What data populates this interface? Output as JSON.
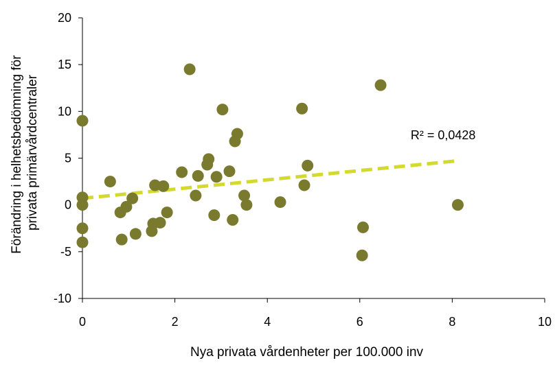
{
  "chart_data": {
    "type": "scatter",
    "title": "",
    "xlabel": "Nya privata vårdenheter per 100.000 inv",
    "ylabel_lines": [
      "Förändring i helhetsbedömning för",
      "privata primärvårdcentraler"
    ],
    "xlim": [
      0,
      10
    ],
    "ylim": [
      -10,
      20
    ],
    "x_ticks": [
      0,
      2,
      4,
      6,
      8,
      10
    ],
    "y_ticks": [
      -10,
      -5,
      0,
      5,
      10,
      15,
      20
    ],
    "x_tick_labels": [
      "0",
      "2",
      "4",
      "6",
      "8",
      "10"
    ],
    "y_tick_labels": [
      "-10",
      "-5",
      "0",
      "5",
      "10",
      "15",
      "20"
    ],
    "grid": false,
    "legend": "none",
    "series": [
      {
        "x": [
          0,
          0,
          0,
          0,
          0,
          0.6,
          0.82,
          0.85,
          0.95,
          1.08,
          1.15,
          1.5,
          1.53,
          1.57,
          1.68,
          1.75,
          1.83,
          2.15,
          2.32,
          2.45,
          2.5,
          2.7,
          2.73,
          2.85,
          2.9,
          3.03,
          3.18,
          3.25,
          3.3,
          3.35,
          3.5,
          3.55,
          4.28,
          4.75,
          4.8,
          4.87,
          6.07,
          6.05,
          6.45,
          8.12
        ],
        "y": [
          9,
          0.8,
          0,
          -2.5,
          -4,
          2.5,
          -0.8,
          -3.7,
          -0.2,
          0.7,
          -3.1,
          -2.8,
          -2.0,
          2.1,
          -1.9,
          2.0,
          -0.8,
          3.5,
          14.5,
          1.0,
          3.1,
          4.3,
          4.9,
          -1.1,
          3.0,
          10.2,
          3.6,
          -1.6,
          6.8,
          7.6,
          1.0,
          0,
          0.3,
          10.3,
          2.1,
          4.2,
          -2.4,
          -5.4,
          12.8,
          0
        ]
      }
    ],
    "trendline": {
      "x_range": [
        0,
        8.12
      ],
      "intercept": 0.7,
      "slope": 0.495,
      "label": "R² = 0,0428",
      "label_x": 7.1,
      "label_y": 7.0
    },
    "colors": {
      "marker": "#7a7a2f",
      "trendline": "#d4d930",
      "axis": "#000000"
    }
  }
}
